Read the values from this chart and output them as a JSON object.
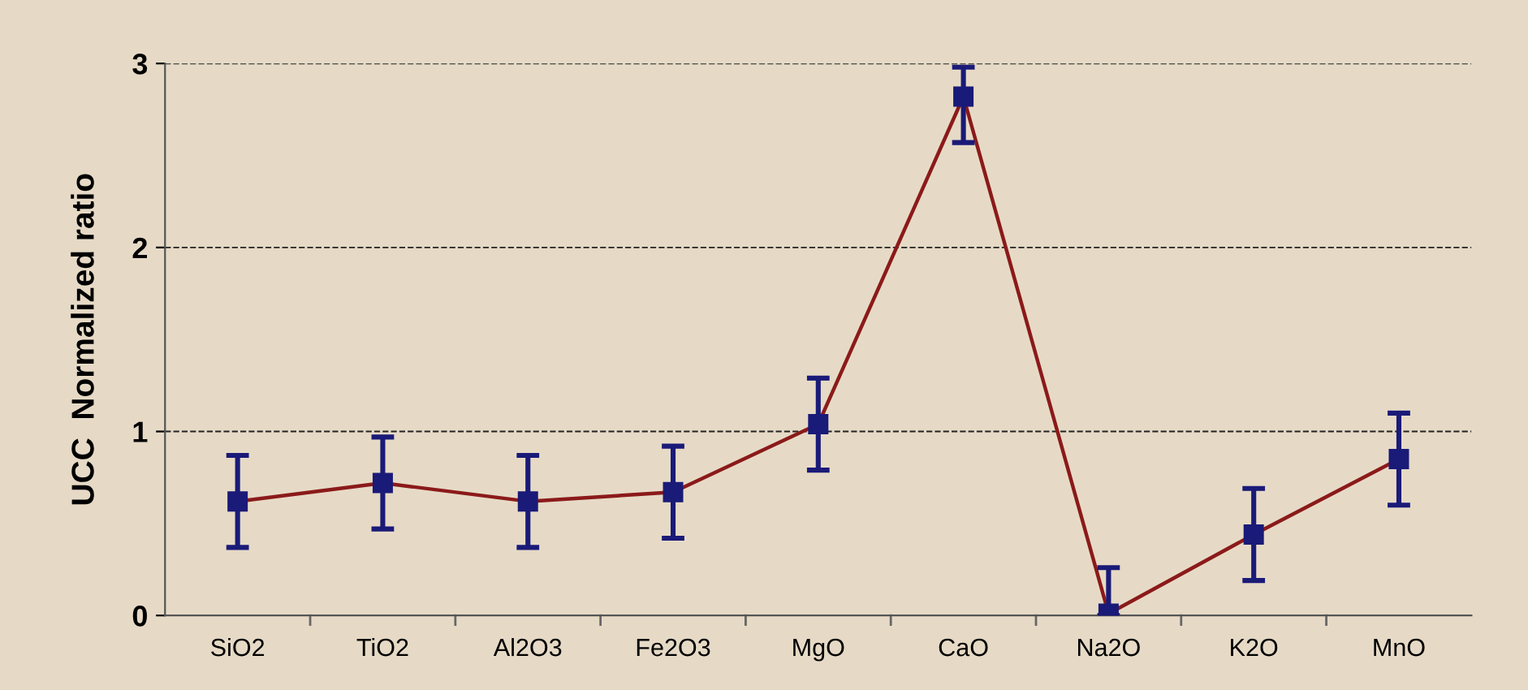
{
  "chart_data": {
    "type": "line",
    "ylabel": "UCC  Normalized ratio",
    "categories": [
      "SiO2",
      "TiO2",
      "Al2O3",
      "Fe2O3",
      "MgO",
      "CaO",
      "Na2O",
      "K2O",
      "MnO"
    ],
    "series": [
      {
        "color": "#8b1a1a",
        "values": [
          0.62,
          0.72,
          0.62,
          0.67,
          1.04,
          2.82,
          0.01,
          0.44,
          0.85
        ],
        "errors": [
          0.25,
          0.25,
          0.25,
          0.25,
          0.25,
          [
            2.57,
            2.98
          ],
          [
            0,
            0.26
          ],
          0.25,
          0.25
        ]
      }
    ],
    "ylim": [
      0,
      3
    ],
    "yticks": [
      0,
      1,
      2,
      3
    ],
    "grid": "y",
    "marker": "square",
    "line_style": "solid"
  }
}
